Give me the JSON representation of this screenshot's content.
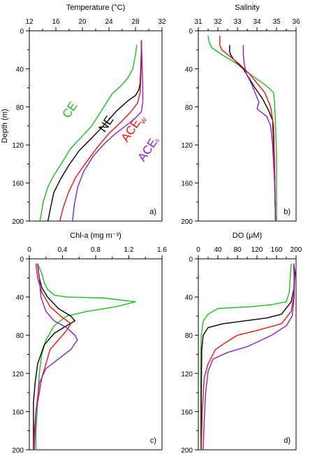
{
  "figure": {
    "y_label": "Depth (m)",
    "colors": {
      "CE": "#22bb22",
      "NE": "#000000",
      "ACEw": "#ee1111",
      "ACEs": "#8822cc"
    }
  },
  "chart_data": [
    {
      "type": "line",
      "panel_label": "a)",
      "title": "Temperature (°C)",
      "x_ticks": [
        "12",
        "16",
        "20",
        "24",
        "28",
        "32"
      ],
      "xlim": [
        12,
        32
      ],
      "y_ticks": [
        "0",
        "40",
        "80",
        "120",
        "160",
        "200"
      ],
      "ylim": [
        0,
        200
      ],
      "y_inverted": true,
      "series": [
        {
          "name": "CE",
          "color": "#22bb22",
          "x": [
            28.2,
            28.0,
            27.6,
            26.8,
            25.8,
            24.5,
            23.6,
            22.5,
            21.4,
            19.8,
            18.2,
            16.8,
            15.7,
            14.8,
            14.1,
            13.6
          ],
          "y": [
            15,
            25,
            40,
            50,
            58,
            66,
            76,
            88,
            100,
            112,
            124,
            140,
            152,
            164,
            180,
            200
          ]
        },
        {
          "name": "NE",
          "color": "#000000",
          "x": [
            28.9,
            28.9,
            28.8,
            28.7,
            28.5,
            28.0,
            26.8,
            25.2,
            23.4,
            21.5,
            19.5,
            17.9,
            16.7,
            15.7,
            15.2,
            14.8
          ],
          "y": [
            10,
            20,
            40,
            55,
            62,
            68,
            74,
            84,
            98,
            112,
            126,
            142,
            156,
            170,
            186,
            200
          ]
        },
        {
          "name": "ACEw",
          "color": "#ee1111",
          "x": [
            28.9,
            28.9,
            28.8,
            28.7,
            28.3,
            27.2,
            25.8,
            24.0,
            22.3,
            20.6,
            19.0,
            17.9,
            17.1,
            16.6
          ],
          "y": [
            10,
            30,
            50,
            65,
            76,
            86,
            96,
            108,
            122,
            138,
            154,
            170,
            186,
            200
          ]
        },
        {
          "name": "ACEs",
          "color": "#8822cc",
          "x": [
            28.9,
            29.0,
            29.1,
            29.1,
            28.9,
            27.8,
            26.5,
            25.0,
            23.4,
            21.6,
            20.2,
            19.3,
            18.8,
            18.5
          ],
          "y": [
            10,
            35,
            60,
            75,
            85,
            93,
            100,
            108,
            118,
            132,
            148,
            164,
            182,
            200
          ]
        }
      ],
      "curve_labels": [
        "CE",
        "NE",
        "ACE",
        "W",
        "ACE",
        "s"
      ]
    },
    {
      "type": "line",
      "panel_label": "b)",
      "title": "Salinity",
      "x_ticks": [
        "31",
        "32",
        "33",
        "34",
        "35",
        "36"
      ],
      "xlim": [
        31,
        36
      ],
      "y_ticks": [
        "0",
        "40",
        "80",
        "120",
        "160",
        "200"
      ],
      "ylim": [
        0,
        200
      ],
      "y_inverted": true,
      "series": [
        {
          "name": "CE",
          "color": "#22bb22",
          "x": [
            31.5,
            31.55,
            31.7,
            32.2,
            33.0,
            33.6,
            34.3,
            34.6,
            34.85,
            34.9,
            34.95,
            35.0,
            35.0,
            35.0
          ],
          "y": [
            5,
            12,
            18,
            25,
            35,
            45,
            55,
            60,
            65,
            75,
            100,
            130,
            170,
            200
          ]
        },
        {
          "name": "NE",
          "color": "#000000",
          "x": [
            32.6,
            32.6,
            32.65,
            32.8,
            33.3,
            33.6,
            33.9,
            34.3,
            34.6,
            34.8,
            34.85,
            34.9,
            34.95
          ],
          "y": [
            15,
            22,
            25,
            30,
            40,
            50,
            60,
            72,
            84,
            94,
            120,
            160,
            200
          ]
        },
        {
          "name": "ACEw",
          "color": "#ee1111",
          "x": [
            32.1,
            32.1,
            32.2,
            32.5,
            33.1,
            33.6,
            34.0,
            34.4,
            34.7,
            34.85,
            34.9,
            34.95
          ],
          "y": [
            5,
            15,
            20,
            25,
            35,
            45,
            55,
            65,
            80,
            100,
            140,
            200
          ]
        },
        {
          "name": "ACEs",
          "color": "#8822cc",
          "x": [
            33.3,
            33.3,
            33.35,
            33.45,
            33.7,
            33.9,
            34.1,
            34.0,
            34.5,
            34.7,
            34.75,
            34.8,
            34.9,
            34.95
          ],
          "y": [
            15,
            25,
            35,
            45,
            55,
            65,
            75,
            82,
            90,
            100,
            110,
            120,
            160,
            200
          ]
        }
      ]
    },
    {
      "type": "line",
      "panel_label": "c)",
      "title": "Chl-a (mg m⁻³)",
      "x_ticks": [
        "0",
        "0.4",
        "0.8",
        "1.2",
        "1.6"
      ],
      "xlim": [
        0,
        1.6
      ],
      "y_ticks": [
        "0",
        "40",
        "80",
        "120",
        "160",
        "200"
      ],
      "ylim": [
        0,
        200
      ],
      "y_inverted": true,
      "series": [
        {
          "name": "CE",
          "color": "#22bb22",
          "x": [
            0.1,
            0.15,
            0.18,
            0.22,
            0.3,
            0.45,
            0.9,
            1.28,
            1.05,
            0.7,
            0.45,
            0.3,
            0.2,
            0.15,
            0.12,
            0.1,
            0.08,
            0.08
          ],
          "y": [
            5,
            15,
            25,
            32,
            38,
            40,
            41,
            45,
            50,
            55,
            60,
            70,
            85,
            100,
            120,
            150,
            180,
            200
          ]
        },
        {
          "name": "NE",
          "color": "#000000",
          "x": [
            0.1,
            0.12,
            0.15,
            0.22,
            0.35,
            0.5,
            0.55,
            0.45,
            0.3,
            0.18,
            0.1,
            0.07,
            0.05,
            0.05,
            0.05
          ],
          "y": [
            5,
            20,
            30,
            40,
            52,
            60,
            65,
            70,
            78,
            90,
            110,
            130,
            150,
            180,
            200
          ]
        },
        {
          "name": "ACEw",
          "color": "#ee1111",
          "x": [
            0.08,
            0.1,
            0.15,
            0.25,
            0.38,
            0.5,
            0.45,
            0.35,
            0.25,
            0.2,
            0.15,
            0.12,
            0.08,
            0.06,
            0.05
          ],
          "y": [
            5,
            20,
            35,
            50,
            60,
            68,
            75,
            85,
            95,
            110,
            125,
            140,
            160,
            180,
            200
          ]
        },
        {
          "name": "ACEs",
          "color": "#8822cc",
          "x": [
            0.1,
            0.12,
            0.14,
            0.2,
            0.3,
            0.45,
            0.55,
            0.58,
            0.5,
            0.35,
            0.2,
            0.12,
            0.08,
            0.06
          ],
          "y": [
            5,
            20,
            40,
            55,
            65,
            72,
            80,
            85,
            95,
            105,
            115,
            130,
            160,
            200
          ]
        }
      ]
    },
    {
      "type": "line",
      "panel_label": "d)",
      "title": "DO (μM)",
      "x_ticks": [
        "0",
        "40",
        "80",
        "120",
        "160",
        "200"
      ],
      "xlim": [
        0,
        200
      ],
      "y_ticks": [
        "0",
        "40",
        "80",
        "120",
        "160",
        "200"
      ],
      "ylim": [
        0,
        200
      ],
      "y_inverted": true,
      "series": [
        {
          "name": "CE",
          "color": "#22bb22",
          "x": [
            190,
            188,
            186,
            180,
            150,
            110,
            40,
            20,
            10,
            6,
            5,
            5,
            5
          ],
          "y": [
            5,
            20,
            35,
            45,
            48,
            50,
            52,
            58,
            65,
            80,
            110,
            160,
            200
          ]
        },
        {
          "name": "NE",
          "color": "#000000",
          "x": [
            195,
            198,
            196,
            190,
            170,
            140,
            50,
            20,
            10,
            7,
            6,
            6
          ],
          "y": [
            5,
            15,
            30,
            45,
            58,
            62,
            68,
            72,
            80,
            95,
            140,
            200
          ]
        },
        {
          "name": "ACEw",
          "color": "#ee1111",
          "x": [
            195,
            196,
            195,
            190,
            170,
            120,
            80,
            55,
            35,
            20,
            12,
            8,
            6
          ],
          "y": [
            5,
            20,
            40,
            55,
            68,
            75,
            80,
            88,
            95,
            110,
            125,
            160,
            200
          ]
        },
        {
          "name": "ACEs",
          "color": "#8822cc",
          "x": [
            195,
            197,
            196,
            192,
            180,
            150,
            100,
            60,
            30,
            20,
            15,
            12,
            10
          ],
          "y": [
            5,
            20,
            40,
            60,
            70,
            80,
            92,
            98,
            105,
            118,
            140,
            170,
            200
          ]
        }
      ]
    }
  ]
}
